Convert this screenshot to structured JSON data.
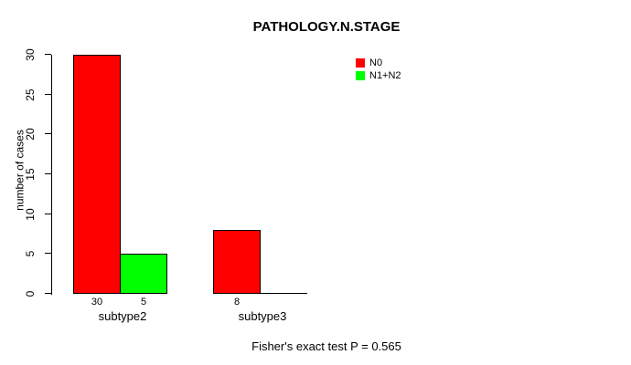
{
  "chart_data": {
    "type": "bar",
    "title": "PATHOLOGY.N.STAGE",
    "ylabel": "number of cases",
    "xlabel": "",
    "categories": [
      "subtype2",
      "subtype3"
    ],
    "series": [
      {
        "name": "N0",
        "color": "#ff0000",
        "values": [
          30,
          8
        ]
      },
      {
        "name": "N1+N2",
        "color": "#00ff00",
        "values": [
          5,
          0
        ]
      }
    ],
    "bar_value_labels": [
      [
        "30",
        "5"
      ],
      [
        "8",
        null
      ]
    ],
    "yticks": [
      0,
      5,
      10,
      15,
      20,
      25,
      30
    ],
    "ylim": [
      0,
      30
    ],
    "grid": false,
    "legend_position": "top-right",
    "legend_entries": [
      "N0",
      "N1+N2"
    ],
    "annotation": "Fisher's exact test P = 0.565",
    "colors": {
      "bar_border": "#000000",
      "axis": "#000000",
      "text": "#000000",
      "background": "#ffffff"
    }
  }
}
